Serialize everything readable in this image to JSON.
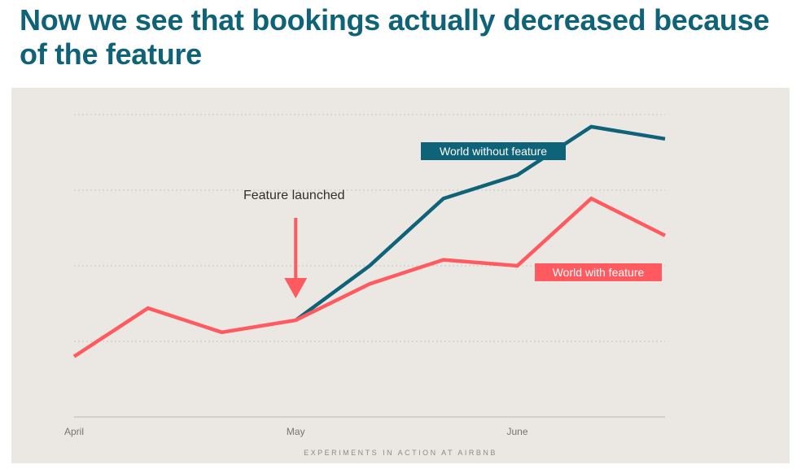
{
  "slide": {
    "title": "Now we see that bookings actually decreased because of the feature",
    "footer": "EXPERIMENTS IN ACTION AT AIRBNB"
  },
  "chart_data": {
    "type": "line",
    "title": "",
    "xlabel": "",
    "ylabel": "",
    "grid": true,
    "x_ticks": [
      {
        "label": "April",
        "x": 0
      },
      {
        "label": "May",
        "x": 3
      },
      {
        "label": "June",
        "x": 6
      }
    ],
    "xlim": [
      0,
      8
    ],
    "ylim": [
      0,
      4
    ],
    "series": [
      {
        "name": "World without feature",
        "color": "#0f6378",
        "x": [
          3,
          4,
          5,
          6,
          7,
          8
        ],
        "values": [
          1.28,
          2.0,
          2.89,
          3.2,
          3.84,
          3.68
        ]
      },
      {
        "name": "World with feature",
        "color": "#ff5a5f",
        "x": [
          0,
          1,
          2,
          3,
          4,
          5,
          6,
          7,
          8
        ],
        "values": [
          0.8,
          1.44,
          1.12,
          1.28,
          1.76,
          2.08,
          2.0,
          2.89,
          2.4
        ]
      }
    ],
    "annotation": {
      "text": "Feature launched",
      "x": 3,
      "color": "#ff5a5f"
    }
  }
}
